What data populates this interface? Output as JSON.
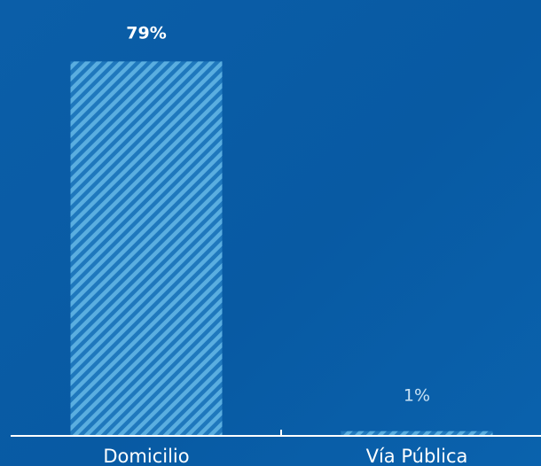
{
  "chart_data": {
    "type": "bar",
    "categories": [
      "Domicilio",
      "Vía Pública"
    ],
    "values": [
      79,
      1
    ],
    "value_labels": [
      "79%",
      "1%"
    ],
    "ylim": [
      0,
      100
    ],
    "grid": false,
    "legend": "none",
    "title": "",
    "xlabel": "",
    "ylabel": ""
  },
  "colors": {
    "background": "#0a5ea8",
    "bar_fill": "#1f78bd",
    "bar_stripe": "#5aaee0",
    "axis": "#ffffff",
    "label_text": "#ffffff",
    "small_label_text": "#c9e2f4"
  }
}
